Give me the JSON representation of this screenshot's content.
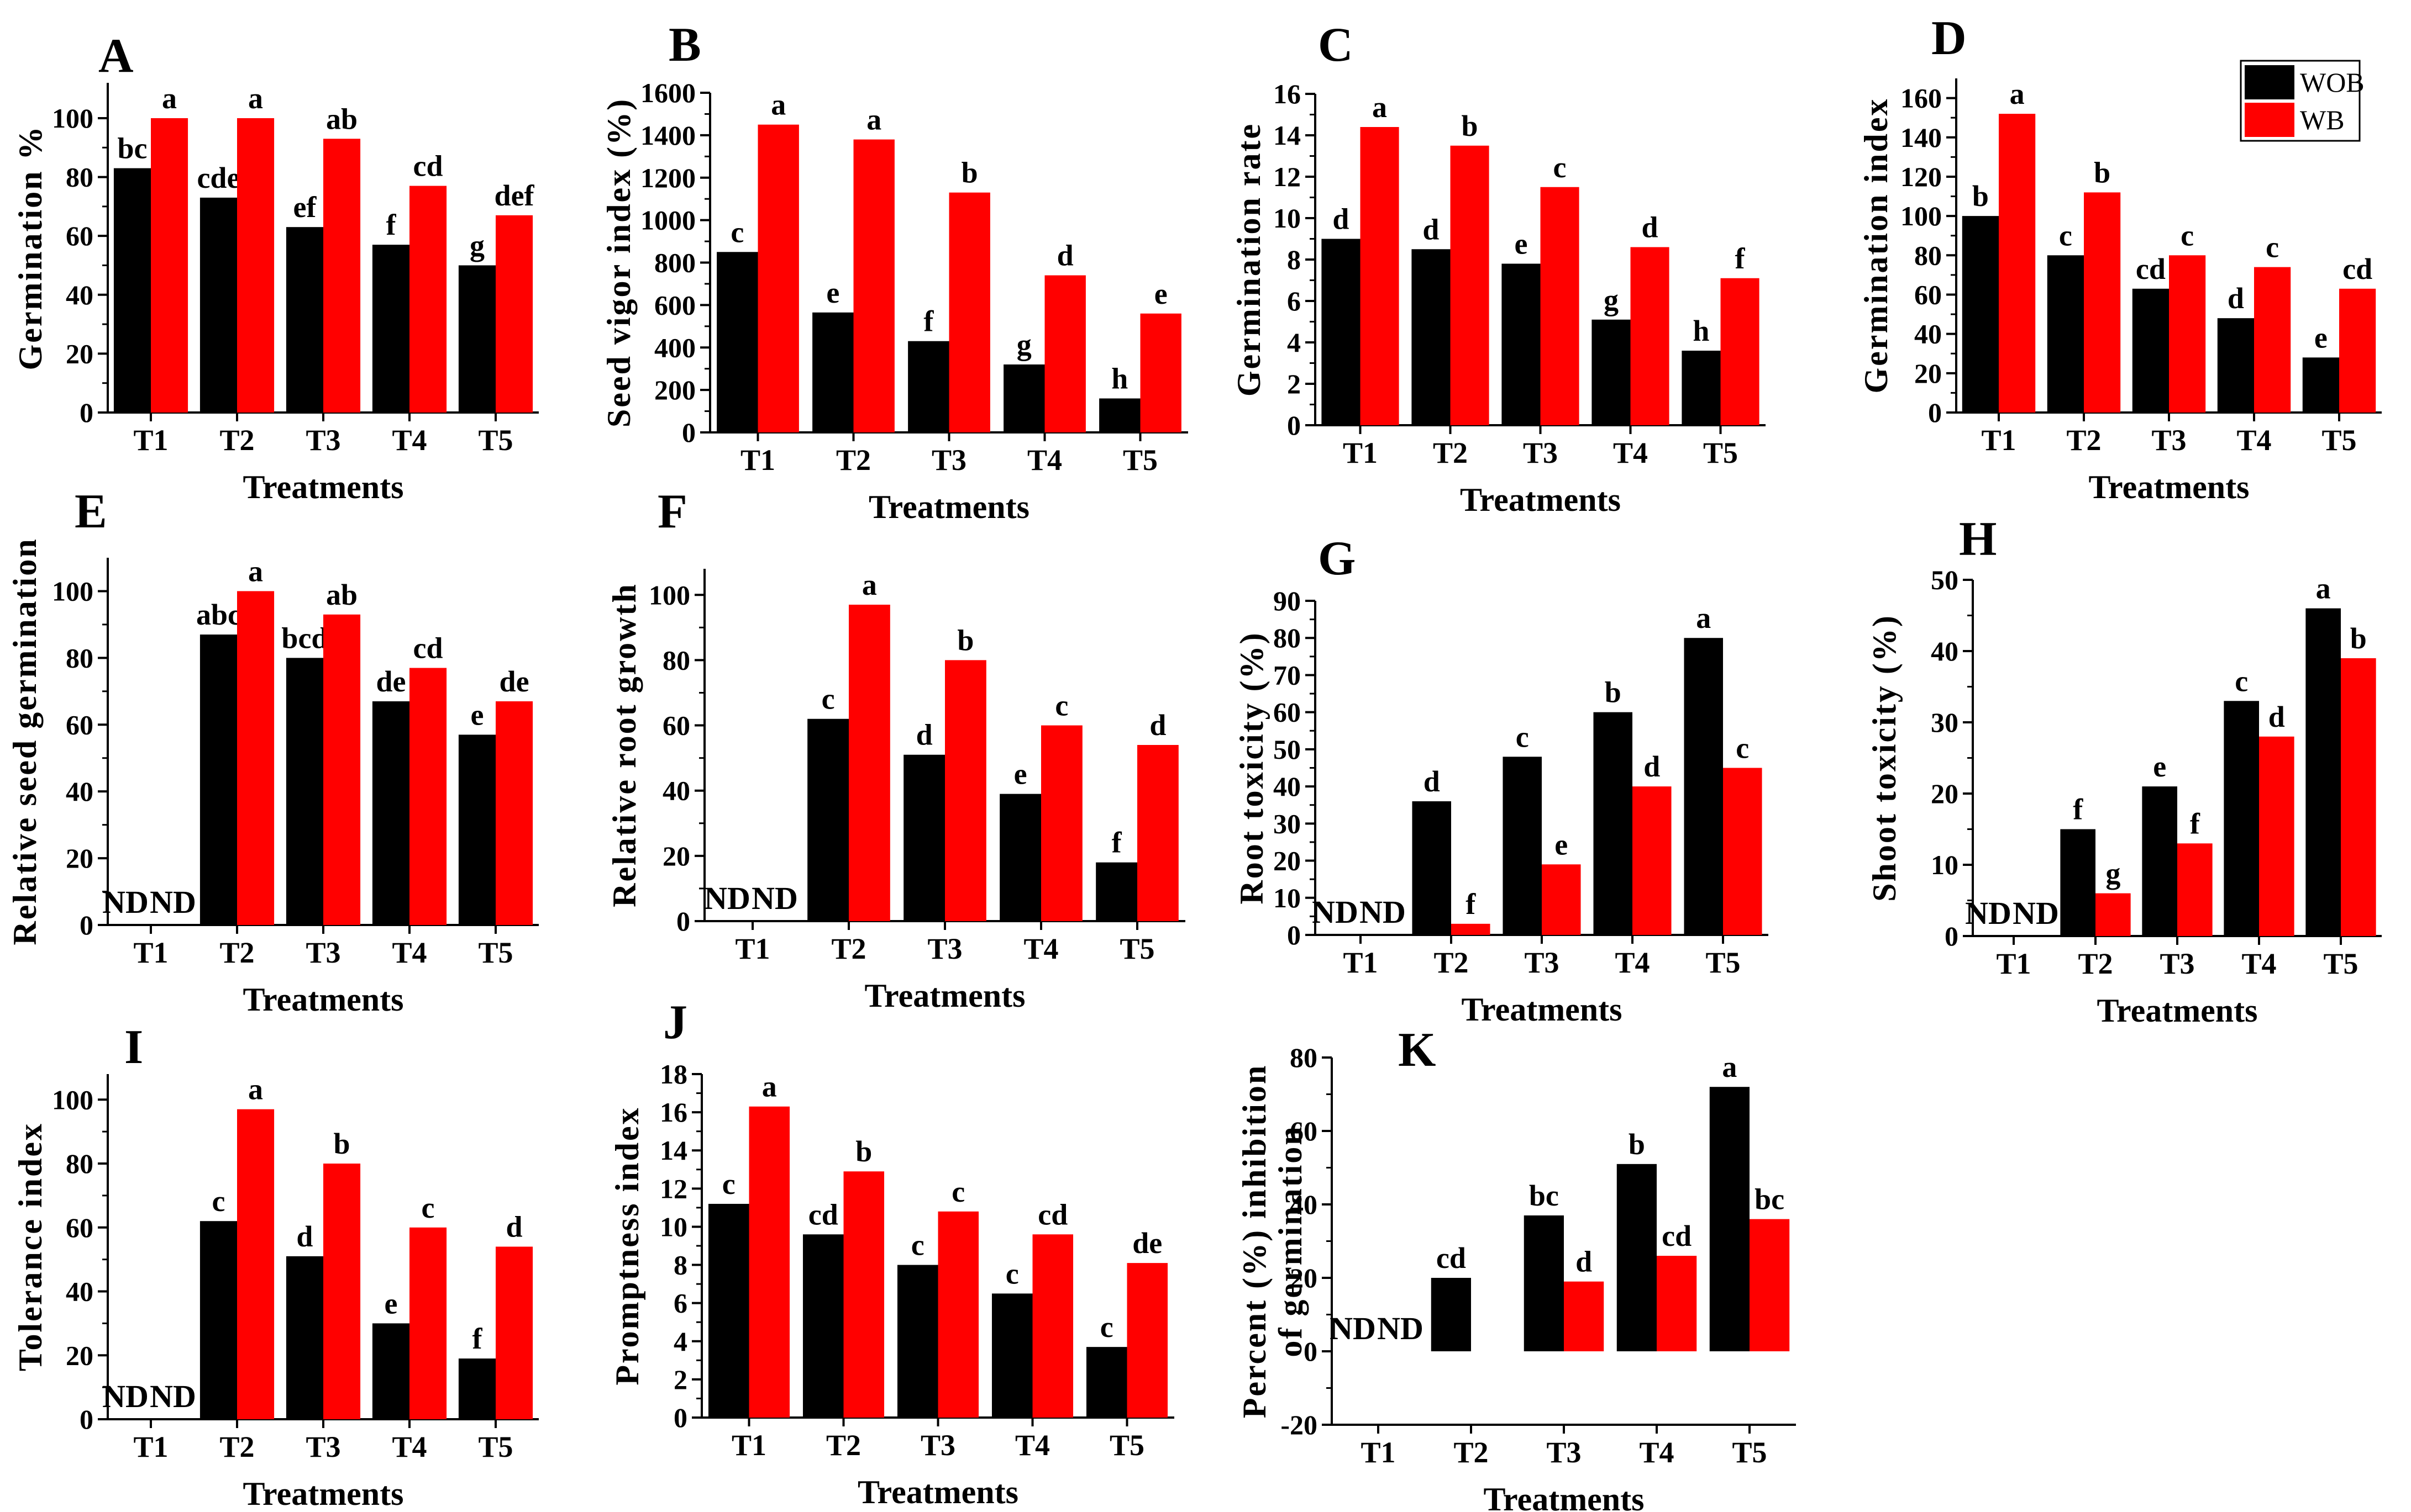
{
  "legend": [
    {
      "name": "WOB",
      "color": "#000000"
    },
    {
      "name": "WB",
      "color": "#ff0000"
    }
  ],
  "nd_label": "ND",
  "chart_data": [
    {
      "panel": "A",
      "type": "bar",
      "ylabel": "Germination %",
      "xlabel": "Treatments",
      "categories": [
        "T1",
        "T2",
        "T3",
        "T4",
        "T5"
      ],
      "ylim": [
        0,
        112
      ],
      "yticks": [
        0,
        20,
        40,
        60,
        80,
        100
      ],
      "series": [
        {
          "name": "WOB",
          "values": [
            83,
            73,
            63,
            57,
            50
          ],
          "labels": [
            "bc",
            "cde",
            "ef",
            "f",
            "g"
          ]
        },
        {
          "name": "WB",
          "values": [
            100,
            100,
            93,
            77,
            67
          ],
          "labels": [
            "a",
            "a",
            "ab",
            "cd",
            "def"
          ]
        }
      ]
    },
    {
      "panel": "B",
      "type": "bar",
      "ylabel": "Seed vigor index (%)",
      "xlabel": "Treatments",
      "categories": [
        "T1",
        "T2",
        "T3",
        "T4",
        "T5"
      ],
      "ylim": [
        0,
        1600
      ],
      "yticks": [
        0,
        200,
        400,
        600,
        800,
        1000,
        1200,
        1400,
        1600
      ],
      "series": [
        {
          "name": "WOB",
          "values": [
            850,
            565,
            430,
            320,
            160
          ],
          "labels": [
            "c",
            "e",
            "f",
            "g",
            "h"
          ]
        },
        {
          "name": "WB",
          "values": [
            1450,
            1380,
            1130,
            740,
            560
          ],
          "labels": [
            "a",
            "a",
            "b",
            "d",
            "e"
          ]
        }
      ]
    },
    {
      "panel": "C",
      "type": "bar",
      "ylabel": "Germination rate",
      "xlabel": "Treatments",
      "categories": [
        "T1",
        "T2",
        "T3",
        "T4",
        "T5"
      ],
      "ylim": [
        0,
        16
      ],
      "yticks": [
        0,
        2,
        4,
        6,
        8,
        10,
        12,
        14,
        16
      ],
      "series": [
        {
          "name": "WOB",
          "values": [
            9.0,
            8.5,
            7.8,
            5.1,
            3.6
          ],
          "labels": [
            "d",
            "d",
            "e",
            "g",
            "h"
          ]
        },
        {
          "name": "WB",
          "values": [
            14.4,
            13.5,
            11.5,
            8.6,
            7.1
          ],
          "labels": [
            "a",
            "b",
            "c",
            "d",
            "f"
          ]
        }
      ]
    },
    {
      "panel": "D",
      "type": "bar",
      "ylabel": "Germination index",
      "xlabel": "Treatments",
      "categories": [
        "T1",
        "T2",
        "T3",
        "T4",
        "T5"
      ],
      "ylim": [
        0,
        170
      ],
      "yticks": [
        0,
        20,
        40,
        60,
        80,
        100,
        120,
        140,
        160
      ],
      "series": [
        {
          "name": "WOB",
          "values": [
            100,
            80,
            63,
            48,
            28
          ],
          "labels": [
            "b",
            "c",
            "cd",
            "d",
            "e"
          ]
        },
        {
          "name": "WB",
          "values": [
            152,
            112,
            80,
            74,
            63
          ],
          "labels": [
            "a",
            "b",
            "c",
            "c",
            "cd"
          ]
        }
      ]
    },
    {
      "panel": "E",
      "type": "bar",
      "ylabel": "Relative seed germination",
      "xlabel": "Treatments",
      "categories": [
        "T1",
        "T2",
        "T3",
        "T4",
        "T5"
      ],
      "ylim": [
        0,
        110
      ],
      "yticks": [
        0,
        20,
        40,
        60,
        80,
        100
      ],
      "series": [
        {
          "name": "WOB",
          "values": [
            null,
            87,
            80,
            67,
            57
          ],
          "labels": [
            "",
            "abc",
            "bcd",
            "de",
            "e"
          ]
        },
        {
          "name": "WB",
          "values": [
            null,
            100,
            93,
            77,
            67
          ],
          "labels": [
            "",
            "a",
            "ab",
            "cd",
            "de"
          ]
        }
      ]
    },
    {
      "panel": "F",
      "type": "bar",
      "ylabel": "Relative root growth",
      "xlabel": "Treatments",
      "categories": [
        "T1",
        "T2",
        "T3",
        "T4",
        "T5"
      ],
      "ylim": [
        0,
        108
      ],
      "yticks": [
        0,
        20,
        40,
        60,
        80,
        100
      ],
      "series": [
        {
          "name": "WOB",
          "values": [
            null,
            62,
            51,
            39,
            18
          ],
          "labels": [
            "",
            "c",
            "d",
            "e",
            "f"
          ]
        },
        {
          "name": "WB",
          "values": [
            null,
            97,
            80,
            60,
            54
          ],
          "labels": [
            "",
            "a",
            "b",
            "c",
            "d"
          ]
        }
      ]
    },
    {
      "panel": "G",
      "type": "bar",
      "ylabel": "Root toxicity (%)",
      "xlabel": "Treatments",
      "categories": [
        "T1",
        "T2",
        "T3",
        "T4",
        "T5"
      ],
      "ylim": [
        0,
        90
      ],
      "yticks": [
        0,
        10,
        20,
        30,
        40,
        50,
        60,
        70,
        80,
        90
      ],
      "series": [
        {
          "name": "WOB",
          "values": [
            null,
            36,
            48,
            60,
            80
          ],
          "labels": [
            "",
            "d",
            "c",
            "b",
            "a"
          ]
        },
        {
          "name": "WB",
          "values": [
            null,
            3,
            19,
            40,
            45
          ],
          "labels": [
            "",
            "f",
            "e",
            "d",
            "c"
          ]
        }
      ]
    },
    {
      "panel": "H",
      "type": "bar",
      "ylabel": "Shoot toxicity (%)",
      "xlabel": "Treatments",
      "categories": [
        "T1",
        "T2",
        "T3",
        "T4",
        "T5"
      ],
      "ylim": [
        0,
        50
      ],
      "yticks": [
        0,
        10,
        20,
        30,
        40,
        50
      ],
      "series": [
        {
          "name": "WOB",
          "values": [
            null,
            15,
            21,
            33,
            46
          ],
          "labels": [
            "",
            "f",
            "e",
            "c",
            "a"
          ]
        },
        {
          "name": "WB",
          "values": [
            null,
            6,
            13,
            28,
            39
          ],
          "labels": [
            "",
            "g",
            "f",
            "d",
            "b"
          ]
        }
      ]
    },
    {
      "panel": "I",
      "type": "bar",
      "ylabel": "Tolerance index",
      "xlabel": "Treatments",
      "categories": [
        "T1",
        "T2",
        "T3",
        "T4",
        "T5"
      ],
      "ylim": [
        0,
        108
      ],
      "yticks": [
        0,
        20,
        40,
        60,
        80,
        100
      ],
      "series": [
        {
          "name": "WOB",
          "values": [
            null,
            62,
            51,
            30,
            19
          ],
          "labels": [
            "",
            "c",
            "d",
            "e",
            "f"
          ]
        },
        {
          "name": "WB",
          "values": [
            null,
            97,
            80,
            60,
            54
          ],
          "labels": [
            "",
            "a",
            "b",
            "c",
            "d"
          ]
        }
      ]
    },
    {
      "panel": "J",
      "type": "bar",
      "ylabel": "Promptness index",
      "xlabel": "Treatments",
      "categories": [
        "T1",
        "T2",
        "T3",
        "T4",
        "T5"
      ],
      "ylim": [
        0,
        18
      ],
      "yticks": [
        0,
        2,
        4,
        6,
        8,
        10,
        12,
        14,
        16,
        18
      ],
      "series": [
        {
          "name": "WOB",
          "values": [
            11.2,
            9.6,
            8.0,
            6.5,
            3.7
          ],
          "labels": [
            "c",
            "cd",
            "c",
            "c",
            "c"
          ]
        },
        {
          "name": "WB",
          "values": [
            16.3,
            12.9,
            10.8,
            9.6,
            8.1
          ],
          "labels": [
            "a",
            "b",
            "c",
            "cd",
            "de"
          ]
        }
      ]
    },
    {
      "panel": "K",
      "type": "bar",
      "ylabel": "Percent (%) inhibition",
      "ylabel2": "of germination",
      "xlabel": "Treatments",
      "categories": [
        "T1",
        "T2",
        "T3",
        "T4",
        "T5"
      ],
      "ylim": [
        -20,
        80
      ],
      "yticks": [
        -20,
        0,
        20,
        40,
        60,
        80
      ],
      "series": [
        {
          "name": "WOB",
          "values": [
            null,
            20,
            37,
            51,
            72
          ],
          "labels": [
            "",
            "cd",
            "bc",
            "b",
            "a"
          ]
        },
        {
          "name": "WB",
          "values": [
            null,
            null,
            19,
            26,
            36
          ],
          "labels": [
            "",
            "",
            "d",
            "cd",
            "bc"
          ]
        }
      ]
    }
  ]
}
